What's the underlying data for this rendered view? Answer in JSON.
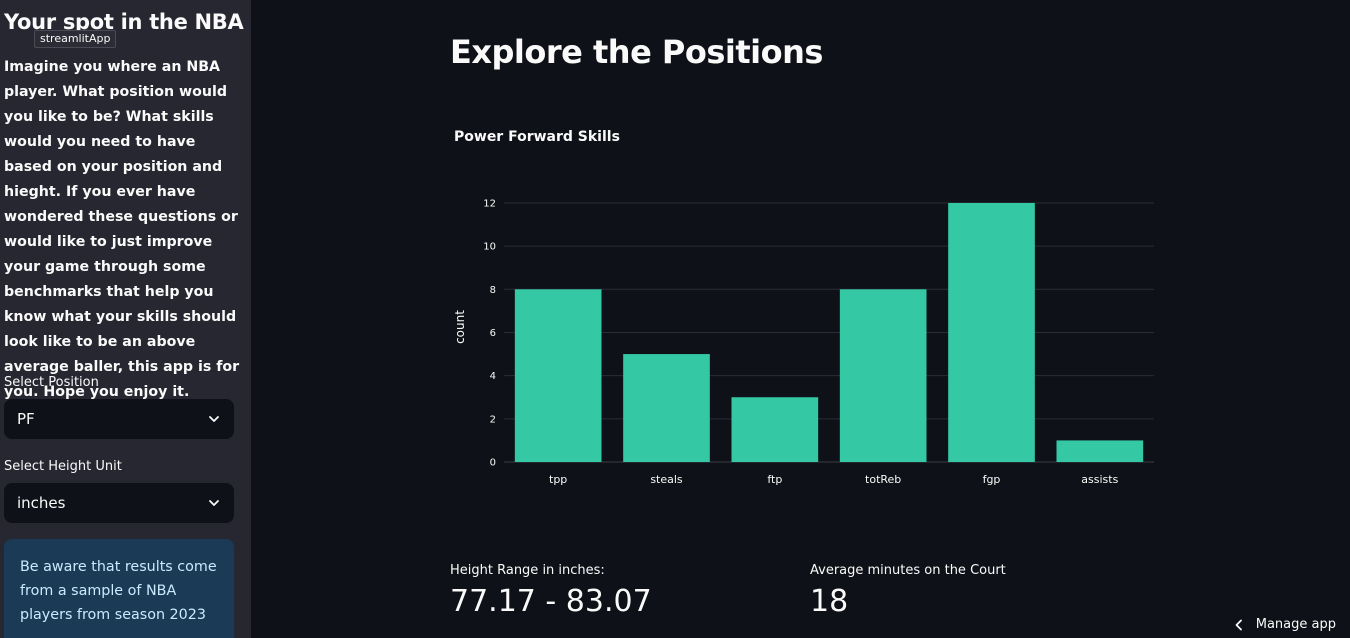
{
  "sidebar": {
    "title": "Your spot in the NBA",
    "tooltip": "streamlitApp",
    "intro": "Imagine you where an NBA player. What position would you like to be? What skills would you need to have based on your position and hieght. If you ever have wondered these questions or would like to just improve your game through some benchmarks that help you know what your skills should look like to be an above average baller, this app is for you. Hope you enjoy it.",
    "position_label": "Select Position",
    "position_value": "PF",
    "height_unit_label": "Select Height Unit",
    "height_unit_value": "inches",
    "info": "Be aware that results come from a sample of NBA players from season 2023"
  },
  "main": {
    "title": "Explore the Positions",
    "height_range_label": "Height Range in inches:",
    "height_range_value": "77.17 - 83.07",
    "minutes_label": "Average minutes on the Court",
    "minutes_value": "18"
  },
  "footer": {
    "manage_label": "Manage app"
  },
  "colors": {
    "bar": "#34c8a5",
    "background": "#0e1117",
    "sidebar": "#262730",
    "info_bg": "#1b3a56"
  },
  "chart_data": {
    "type": "bar",
    "title": "Power Forward Skills",
    "xlabel": "",
    "ylabel": "count",
    "categories": [
      "tpp",
      "steals",
      "ftp",
      "totReb",
      "fgp",
      "assists"
    ],
    "values": [
      8,
      5,
      3,
      8,
      12,
      1
    ],
    "ylim": [
      0,
      12.6
    ],
    "yticks": [
      0,
      2,
      4,
      6,
      8,
      10,
      12
    ],
    "grid": true
  }
}
